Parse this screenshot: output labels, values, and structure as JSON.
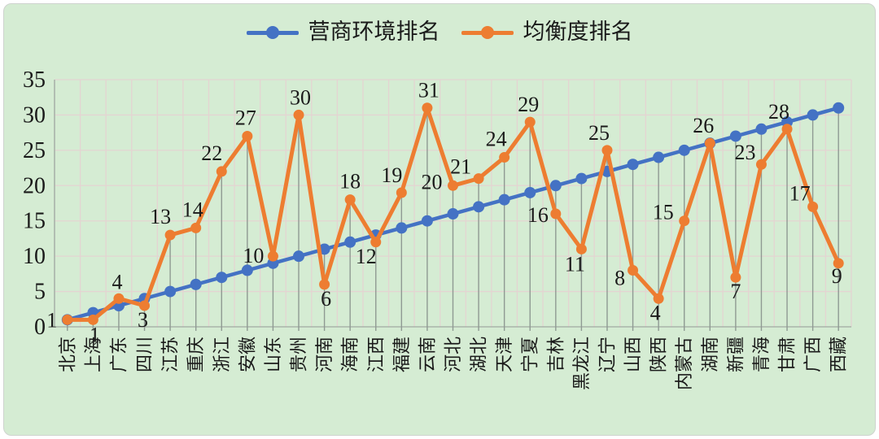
{
  "legend": [
    {
      "label": "营商环境排名",
      "color": "#4472c4"
    },
    {
      "label": "均衡度排名",
      "color": "#ed7d31"
    }
  ],
  "chart_data": {
    "type": "line",
    "title": "",
    "xlabel": "",
    "ylabel": "",
    "categories": [
      "北京",
      "上海",
      "广东",
      "四川",
      "江苏",
      "重庆",
      "浙江",
      "安徽",
      "山东",
      "贵州",
      "河南",
      "海南",
      "江西",
      "福建",
      "云南",
      "河北",
      "湖北",
      "天津",
      "宁夏",
      "吉林",
      "黑龙江",
      "辽宁",
      "山西",
      "陕西",
      "内蒙古",
      "湖南",
      "新疆",
      "青海",
      "甘肃",
      "广西",
      "西藏"
    ],
    "series": [
      {
        "name": "营商环境排名",
        "color": "#4472c4",
        "values": [
          1,
          2,
          3,
          4,
          5,
          6,
          7,
          8,
          9,
          10,
          11,
          12,
          13,
          14,
          15,
          16,
          17,
          18,
          19,
          20,
          21,
          22,
          23,
          24,
          25,
          26,
          27,
          28,
          29,
          30,
          31
        ],
        "data_labels": false
      },
      {
        "name": "均衡度排名",
        "color": "#ed7d31",
        "values": [
          1,
          1,
          4,
          3,
          13,
          14,
          22,
          27,
          10,
          30,
          6,
          18,
          12,
          19,
          31,
          20,
          21,
          24,
          29,
          16,
          11,
          25,
          8,
          4,
          15,
          26,
          7,
          23,
          28,
          17,
          9
        ],
        "data_labels": true
      }
    ],
    "ylim": [
      0,
      35
    ],
    "yticks": [
      0,
      5,
      10,
      15,
      20,
      25,
      30,
      35
    ],
    "grid": true,
    "legend_position": "top",
    "colors": {
      "background": "#d5ecd3",
      "gridline": "#e4d4d2",
      "dropline": "#8f9a93",
      "axis": "#a9b3aa",
      "text": "#1a1a1a"
    }
  }
}
